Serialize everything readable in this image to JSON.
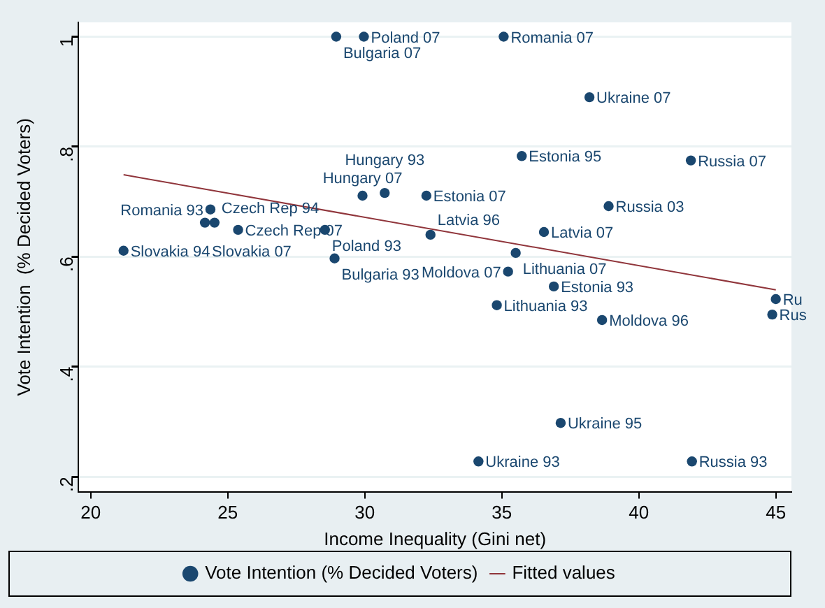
{
  "chart_data": {
    "type": "scatter",
    "xlabel": "Income Inequality (Gini net)",
    "ylabel": "Vote Intention  (% Decided Voters)",
    "xlim": [
      19.56,
      45.57
    ],
    "xticks": [
      20,
      25,
      30,
      35,
      40,
      45
    ],
    "ylim": [
      0.173,
      1.026
    ],
    "yticks": [
      {
        "value": 0.2,
        "label": ".2"
      },
      {
        "value": 0.4,
        "label": ".4"
      },
      {
        "value": 0.6,
        "label": ".6"
      },
      {
        "value": 0.8,
        "label": ".8"
      },
      {
        "value": 1,
        "label": "1"
      }
    ],
    "grid": "y",
    "legend": "bottom",
    "marker": "circle",
    "series": [
      {
        "name": "Vote Intention (% Decided Voters)",
        "type": "scatter",
        "color": "#1a476f",
        "x": [
          28.96,
          29.97,
          35.07,
          38.2,
          35.73,
          41.9,
          38.9,
          29.92,
          30.73,
          32.25,
          24.37,
          24.17,
          24.52,
          25.38,
          28.55,
          21.2,
          28.9,
          32.4,
          36.54,
          35.51,
          35.23,
          36.9,
          34.82,
          38.66,
          45.0,
          44.87,
          37.15,
          34.15,
          41.94
        ],
        "values": [
          1.0,
          1.0,
          1.0,
          0.89,
          0.783,
          0.775,
          0.692,
          0.711,
          0.716,
          0.711,
          0.686,
          0.662,
          0.662,
          0.649,
          0.649,
          0.611,
          0.597,
          0.64,
          0.645,
          0.607,
          0.573,
          0.546,
          0.512,
          0.485,
          0.523,
          0.495,
          0.298,
          0.228,
          0.228
        ],
        "value_labels": [
          "Bulgaria 07",
          "Poland 07",
          "Romania 07",
          "Ukraine 07",
          "Estonia 95",
          "Russia 07",
          "Russia 03",
          "Hungary 07",
          "Hungary 93",
          "Estonia 07",
          "Romania 93",
          "Slovakia 07",
          "Czech Rep 94",
          "Czech Rep 07",
          "Poland 93",
          "Slovakia 94",
          "Bulgaria 93",
          "Latvia 96",
          "Latvia 07",
          "Lithuania 07",
          "Moldova 07",
          "Estonia 93",
          "Lithuania 93",
          "Moldova 96",
          "Ru",
          "Rus",
          "Ukraine 95",
          "Ukraine 93",
          "Russia 93"
        ]
      },
      {
        "name": "Fitted values",
        "type": "line",
        "color": "#90353b",
        "marker": "none",
        "line_style": "solid",
        "x": [
          21.2,
          45.0
        ],
        "values": [
          0.749,
          0.54
        ]
      }
    ]
  }
}
